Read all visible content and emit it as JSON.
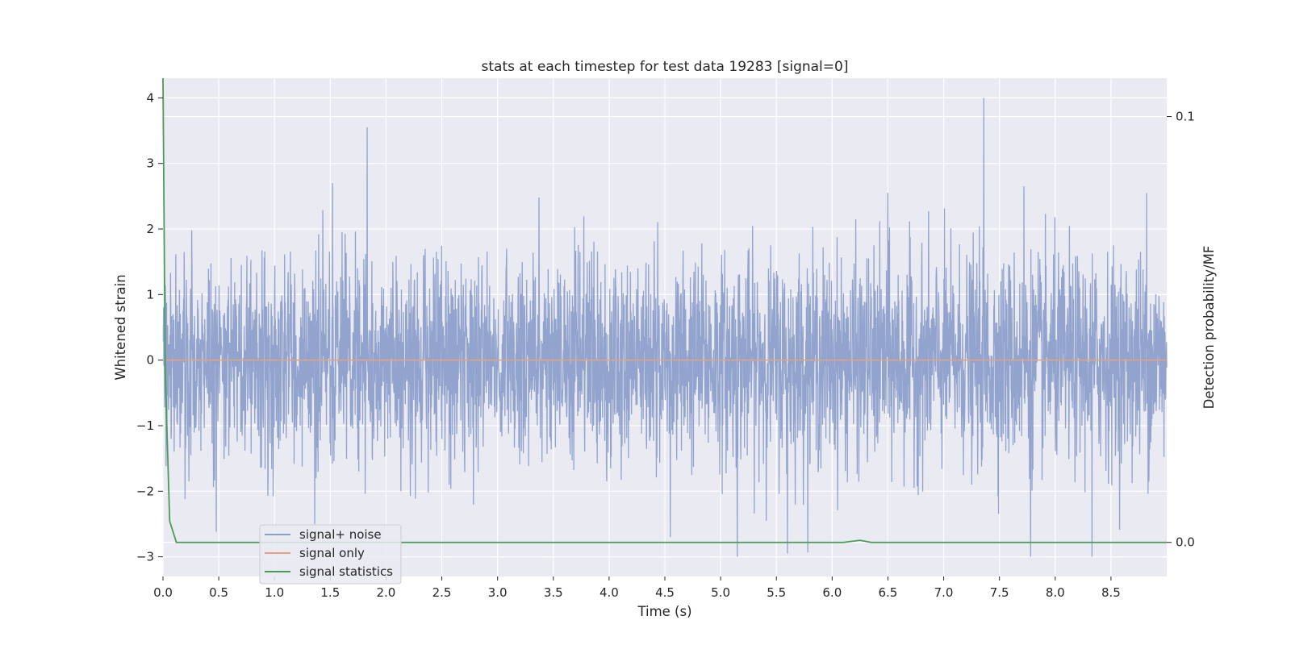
{
  "chart_data": {
    "type": "line",
    "title": "stats at each timestep for test data 19283 [signal=0]",
    "xlabel": "Time (s)",
    "ylabel": "Whitened strain",
    "ylabel_right": "Detection probability/MF",
    "xlim": [
      0,
      9.0
    ],
    "ylim": [
      -3.3,
      4.3
    ],
    "ylim_right": [
      -0.008,
      0.109
    ],
    "x_ticks": [
      "0.0",
      "0.5",
      "1.0",
      "1.5",
      "2.0",
      "2.5",
      "3.0",
      "3.5",
      "4.0",
      "4.5",
      "5.0",
      "5.5",
      "6.0",
      "6.5",
      "7.0",
      "7.5",
      "8.0",
      "8.5"
    ],
    "y_ticks": [
      "−3",
      "−2",
      "−1",
      "0",
      "1",
      "2",
      "3",
      "4"
    ],
    "y_ticks_right": [
      "0.0",
      "0.1"
    ],
    "grid": true,
    "legend_position": "lower-left",
    "series": [
      {
        "name": "signal+ noise",
        "color": "#8da0cb",
        "axis": "left",
        "description_range": [
          -3.0,
          4.0
        ],
        "peaks": [
          {
            "x": 1.83,
            "y": 3.55
          },
          {
            "x": 7.36,
            "y": 4.0
          },
          {
            "x": 1.52,
            "y": 2.7
          },
          {
            "x": 3.37,
            "y": 2.48
          },
          {
            "x": 6.5,
            "y": 2.55
          },
          {
            "x": 7.72,
            "y": 2.65
          },
          {
            "x": 8.82,
            "y": 2.55
          },
          {
            "x": 5.15,
            "y": -3.0
          },
          {
            "x": 7.78,
            "y": -3.0
          },
          {
            "x": 8.33,
            "y": -3.0
          },
          {
            "x": 5.6,
            "y": -2.95
          },
          {
            "x": 4.55,
            "y": -2.7
          }
        ]
      },
      {
        "name": "signal only",
        "color": "#e5a27f",
        "axis": "left",
        "x": [
          0,
          9.0
        ],
        "y": [
          0,
          0
        ]
      },
      {
        "name": "signal statistics",
        "color": "#4c9a5a",
        "axis": "right",
        "x": [
          0.0,
          0.02,
          0.06,
          0.12,
          6.1,
          6.25,
          6.35,
          9.0
        ],
        "y": [
          0.109,
          0.04,
          0.005,
          0.0,
          0.0,
          0.0005,
          0.0,
          0.0
        ]
      }
    ]
  }
}
